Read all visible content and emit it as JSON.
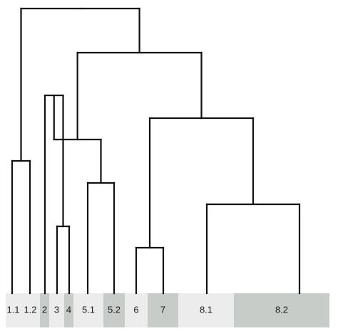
{
  "colors": {
    "background": "#ffffff",
    "branch": "#111111",
    "segment_shades": [
      "#ececec",
      "#c8ccc9"
    ],
    "label": "#1a1a1a"
  },
  "leaves": [
    "1.1",
    "1.2",
    "2",
    "3",
    "4",
    "5.1",
    "5.2",
    "6",
    "7",
    "8.1",
    "8.2"
  ],
  "segments": [
    {
      "label": "1.1",
      "shade": 0
    },
    {
      "label": "1.2",
      "shade": 0
    },
    {
      "label": "2",
      "shade": 1
    },
    {
      "label": "3",
      "shade": 0
    },
    {
      "label": "4",
      "shade": 1
    },
    {
      "label": "5.1",
      "shade": 0
    },
    {
      "label": "5.2",
      "shade": 1
    },
    {
      "label": "6",
      "shade": 0
    },
    {
      "label": "7",
      "shade": 1
    },
    {
      "label": "8.1",
      "shade": 0
    },
    {
      "label": "8.2",
      "shade": 1
    }
  ],
  "merges": [
    {
      "left": "3",
      "right": "4",
      "name": "merge-3-4"
    },
    {
      "left": "6",
      "right": "7",
      "name": "merge-6-7"
    },
    {
      "left": "5.1",
      "right": "5.2",
      "name": "merge-5"
    },
    {
      "left": "1.1",
      "right": "1.2",
      "name": "merge-1"
    },
    {
      "left": "8.1",
      "right": "8.2",
      "name": "merge-8"
    },
    {
      "left": "2",
      "right": "3",
      "name": "merge-2-3"
    },
    {
      "left": "4",
      "right": "5.1",
      "name": "merge-4-5"
    },
    {
      "left": "6",
      "right": "8.1",
      "name": "merge-6-8"
    },
    {
      "left": "2",
      "right": "6",
      "name": "merge-2-8"
    },
    {
      "left": "1.1",
      "right": "2",
      "name": "merge-root"
    }
  ]
}
